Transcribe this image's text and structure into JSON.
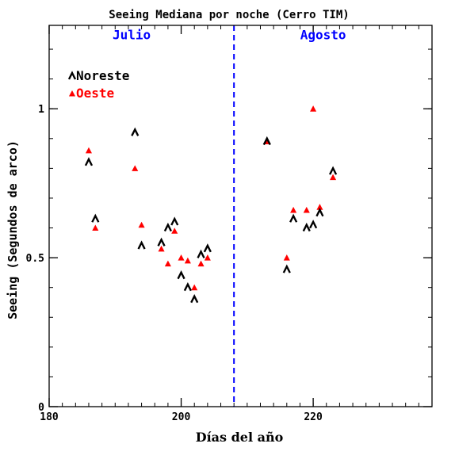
{
  "chart_data": {
    "type": "scatter",
    "title": "Seeing Mediana por noche (Cerro TIM)",
    "xlabel": "Días del año",
    "ylabel": "Seeing (Segundos de arco)",
    "xlim": [
      180,
      238
    ],
    "ylim": [
      0,
      1.28
    ],
    "x_ticks": [
      "180",
      "200",
      "220"
    ],
    "y_ticks": [
      "0",
      "0.5",
      "1"
    ],
    "x_tick_values": [
      180,
      200,
      220
    ],
    "y_tick_values": [
      0,
      0.5,
      1
    ],
    "vline": {
      "x": 208,
      "color": "#0000ff"
    },
    "annotations": [
      {
        "text": "Julio",
        "x": 192.5,
        "y": 1.25,
        "color": "#0000ff"
      },
      {
        "text": "Agosto",
        "x": 221.5,
        "y": 1.25,
        "color": "#0000ff"
      }
    ],
    "series": [
      {
        "name": "Noreste",
        "color": "#000000",
        "marker": "large-triangle",
        "points": [
          [
            186,
            0.82
          ],
          [
            187,
            0.63
          ],
          [
            193,
            0.92
          ],
          [
            194,
            0.54
          ],
          [
            197,
            0.55
          ],
          [
            198,
            0.6
          ],
          [
            199,
            0.62
          ],
          [
            200,
            0.44
          ],
          [
            201,
            0.4
          ],
          [
            202,
            0.36
          ],
          [
            203,
            0.51
          ],
          [
            204,
            0.53
          ],
          [
            213,
            0.89
          ],
          [
            216,
            0.46
          ],
          [
            217,
            0.63
          ],
          [
            219,
            0.6
          ],
          [
            220,
            0.61
          ],
          [
            221,
            0.65
          ],
          [
            223,
            0.79
          ]
        ]
      },
      {
        "name": "Oeste",
        "color": "#ff0000",
        "marker": "small-triangle",
        "points": [
          [
            186,
            0.86
          ],
          [
            187,
            0.6
          ],
          [
            193,
            0.8
          ],
          [
            194,
            0.61
          ],
          [
            197,
            0.53
          ],
          [
            198,
            0.48
          ],
          [
            199,
            0.59
          ],
          [
            200,
            0.5
          ],
          [
            201,
            0.49
          ],
          [
            202,
            0.4
          ],
          [
            203,
            0.48
          ],
          [
            204,
            0.5
          ],
          [
            213,
            0.89
          ],
          [
            216,
            0.5
          ],
          [
            217,
            0.66
          ],
          [
            219,
            0.66
          ],
          [
            220,
            1.0
          ],
          [
            221,
            0.67
          ],
          [
            223,
            0.77
          ]
        ]
      }
    ],
    "legend": {
      "placement": "top-left"
    }
  }
}
